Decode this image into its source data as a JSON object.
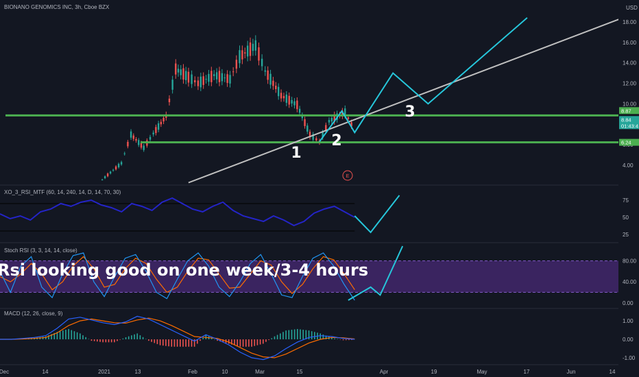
{
  "header": {
    "title": "BIONANO GENOMICS INC, 3h, Cboe BZX",
    "currency": "USD"
  },
  "price_axis": {
    "ticks": [
      "18.00",
      "16.00",
      "14.00",
      "12.00",
      "10.00",
      "8.00",
      "6.00",
      "4.00"
    ],
    "badges": [
      {
        "text": "8.87",
        "color": "#4caf50"
      },
      {
        "text": "8.84",
        "color": "#26a69a"
      },
      {
        "text": "01:43:4",
        "color": "#26a69a"
      },
      {
        "text": "6.24",
        "color": "#4caf50"
      }
    ]
  },
  "time_axis": {
    "labels": [
      "Dec",
      "14",
      "2021",
      "13",
      "Feb",
      "10",
      "Mar",
      "15",
      "Apr",
      "19",
      "May",
      "17",
      "Jun",
      "14"
    ]
  },
  "annotations": {
    "wave_labels": [
      "1",
      "2",
      "3"
    ],
    "event_marker": "E",
    "banner": "Rsi looking good on one week/3-4 hours"
  },
  "panels": {
    "rsi_mtf": {
      "title": "XO_3_RSI_MTF (60, 14, 240, 14, D, 14, 70, 30)",
      "ticks": [
        "75",
        "50",
        "25"
      ]
    },
    "stoch_rsi": {
      "title": "Stoch RSI (3, 3, 14, 14, close)",
      "ticks": [
        "80.00",
        "40.00",
        "0.00"
      ]
    },
    "macd": {
      "title": "MACD (12, 26, close, 9)",
      "ticks": [
        "1.00",
        "0.00",
        "-1.00"
      ]
    }
  },
  "colors": {
    "background": "#131722",
    "support_green": "#4caf50",
    "projection": "#26c6da",
    "trendline": "#c0c0c0",
    "rsi_line": "#2424c8",
    "stoch_k": "#2196f3",
    "stoch_d": "#ff6d00",
    "band_fill": "#3a2460",
    "macd_line": "#2962ff",
    "signal_line": "#ff6d00",
    "hist_up": "#26a69a",
    "hist_down": "#ef5350"
  },
  "chart_data": {
    "type": "line",
    "title": "BIONANO GENOMICS INC, 3h, Cboe BZX",
    "price_ylim": [
      2.2,
      19.6
    ],
    "horizontal_levels": [
      8.87,
      6.24
    ],
    "price_path": [
      {
        "date": "2020-12-30",
        "price": 2.6
      },
      {
        "date": "2021-01-05",
        "price": 4.2
      },
      {
        "date": "2021-01-08",
        "price": 7.0
      },
      {
        "date": "2021-01-12",
        "price": 5.7
      },
      {
        "date": "2021-01-15",
        "price": 7.1
      },
      {
        "date": "2021-01-19",
        "price": 8.8
      },
      {
        "date": "2021-01-22",
        "price": 13.4
      },
      {
        "date": "2021-01-26",
        "price": 12.6
      },
      {
        "date": "2021-01-29",
        "price": 12.0
      },
      {
        "date": "2021-02-03",
        "price": 12.8
      },
      {
        "date": "2021-02-08",
        "price": 12.4
      },
      {
        "date": "2021-02-11",
        "price": 14.6
      },
      {
        "date": "2021-02-16",
        "price": 15.7
      },
      {
        "date": "2021-02-19",
        "price": 13.2
      },
      {
        "date": "2021-02-24",
        "price": 10.8
      },
      {
        "date": "2021-03-01",
        "price": 9.9
      },
      {
        "date": "2021-03-05",
        "price": 7.0
      },
      {
        "date": "2021-03-08",
        "price": 6.3
      },
      {
        "date": "2021-03-11",
        "price": 8.3
      },
      {
        "date": "2021-03-16",
        "price": 9.2
      },
      {
        "date": "2021-03-19",
        "price": 7.4
      }
    ],
    "projection": [
      {
        "date": "2021-03-08",
        "price": 6.3
      },
      {
        "date": "2021-03-15",
        "price": 9.3
      },
      {
        "date": "2021-03-19",
        "price": 7.2
      },
      {
        "date": "2021-03-31",
        "price": 13.0
      },
      {
        "date": "2021-04-11",
        "price": 10.0
      },
      {
        "date": "2021-05-12",
        "price": 18.4
      }
    ],
    "trendline": [
      {
        "date": "2021-01-26",
        "price": 2.3
      },
      {
        "date": "2021-06-16",
        "price": 19.0
      }
    ],
    "rsi_ylim": [
      15,
      95
    ],
    "rsi_path": [
      55,
      48,
      52,
      46,
      58,
      62,
      70,
      66,
      72,
      75,
      68,
      64,
      58,
      70,
      66,
      60,
      72,
      78,
      70,
      62,
      58,
      66,
      72,
      60,
      52,
      48,
      44,
      52,
      46,
      38,
      44,
      56,
      62,
      66,
      58,
      50
    ],
    "rsi_levels": [
      70,
      30
    ],
    "rsi_projection": [
      {
        "date": "2021-03-19",
        "value": 52
      },
      {
        "date": "2021-03-24",
        "value": 28
      },
      {
        "date": "2021-04-02",
        "value": 82
      }
    ],
    "stoch_ylim": [
      -8,
      112
    ],
    "stoch_k": [
      60,
      20,
      70,
      88,
      30,
      10,
      55,
      90,
      95,
      40,
      12,
      50,
      85,
      92,
      60,
      20,
      8,
      45,
      80,
      95,
      70,
      30,
      12,
      40,
      75,
      92,
      55,
      15,
      10,
      50,
      85,
      95,
      70,
      35,
      5
    ],
    "stoch_d": [
      50,
      40,
      55,
      75,
      55,
      25,
      40,
      70,
      88,
      65,
      30,
      35,
      65,
      85,
      75,
      45,
      20,
      30,
      60,
      85,
      82,
      55,
      28,
      30,
      55,
      80,
      72,
      40,
      18,
      35,
      65,
      88,
      82,
      55,
      25
    ],
    "stoch_band": [
      20,
      80
    ],
    "stoch_projection": [
      {
        "date": "2021-03-17",
        "value": 5
      },
      {
        "date": "2021-03-24",
        "value": 30
      },
      {
        "date": "2021-03-27",
        "value": 15
      },
      {
        "date": "2021-04-03",
        "value": 108
      }
    ],
    "macd_ylim": [
      -1.3,
      1.6
    ],
    "macd_line": [
      0.0,
      0.0,
      0.05,
      0.1,
      0.2,
      0.6,
      1.1,
      1.2,
      1.05,
      0.9,
      0.8,
      0.95,
      1.25,
      1.1,
      0.8,
      0.5,
      0.2,
      -0.1,
      0.25,
      0.0,
      -0.3,
      -0.7,
      -1.0,
      -1.1,
      -0.9,
      -0.5,
      -0.15,
      0.1,
      0.2,
      0.15,
      0.05,
      0.0
    ],
    "signal_line": [
      0.0,
      0.0,
      0.02,
      0.05,
      0.1,
      0.35,
      0.75,
      1.0,
      1.1,
      1.0,
      0.9,
      0.88,
      1.05,
      1.15,
      1.0,
      0.75,
      0.45,
      0.15,
      0.1,
      0.05,
      -0.15,
      -0.45,
      -0.75,
      -0.95,
      -1.0,
      -0.8,
      -0.5,
      -0.2,
      0.0,
      0.1,
      0.08,
      0.02
    ]
  }
}
